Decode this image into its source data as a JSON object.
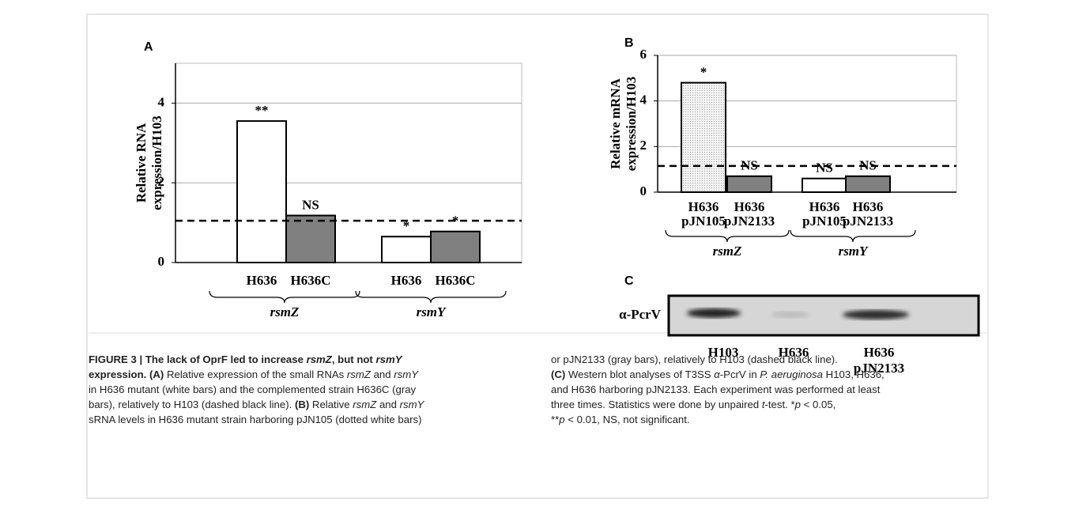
{
  "chart_data": [
    {
      "type": "bar",
      "panel": "A",
      "ylabel": [
        "Relative RNA",
        "expression/H103"
      ],
      "ylim": [
        0,
        5
      ],
      "yticks": [
        0,
        2,
        4
      ],
      "grid": true,
      "reference_line": 1.05,
      "groups": [
        {
          "name": "rsmZ",
          "categories": [
            "H636",
            "H636C"
          ],
          "values": [
            3.55,
            1.18
          ],
          "annotations": [
            "**",
            "NS"
          ],
          "colors": [
            "#ffffff",
            "#808080"
          ],
          "patterns": [
            null,
            null
          ]
        },
        {
          "name": "rsmY",
          "categories": [
            "H636",
            "H636C"
          ],
          "values": [
            0.65,
            0.78
          ],
          "annotations": [
            "*",
            "*"
          ],
          "colors": [
            "#ffffff",
            "#808080"
          ],
          "patterns": [
            null,
            null
          ]
        }
      ]
    },
    {
      "type": "bar",
      "panel": "B",
      "ylabel": [
        "Relative mRNA",
        "expression/H103"
      ],
      "ylim": [
        0,
        6
      ],
      "yticks": [
        0,
        2,
        4,
        6
      ],
      "grid": true,
      "reference_line": 1.15,
      "groups": [
        {
          "name": "rsmZ",
          "categories": [
            [
              "H636",
              "pJN105"
            ],
            [
              "H636",
              "pJN2133"
            ]
          ],
          "values": [
            4.8,
            0.7
          ],
          "annotations": [
            "*",
            "NS"
          ],
          "colors": [
            "#f2f2f2",
            "#808080"
          ],
          "patterns": [
            "dots",
            null
          ]
        },
        {
          "name": "rsmY",
          "categories": [
            [
              "H636",
              "pJN105"
            ],
            [
              "H636",
              "pJN2133"
            ]
          ],
          "values": [
            0.6,
            0.7
          ],
          "annotations": [
            "NS",
            "NS"
          ],
          "colors": [
            "#ffffff",
            "#808080"
          ],
          "patterns": [
            null,
            null
          ]
        }
      ]
    }
  ],
  "blot": {
    "panel": "C",
    "antibody": "α-PcrV",
    "lanes": [
      [
        "H103"
      ],
      [
        "H636"
      ],
      [
        "H636",
        "pJN2133"
      ]
    ]
  },
  "caption": {
    "lines": [
      [
        "FIGURE 3 | The lack of OprF led to increase ",
        "rsmZ",
        ", but not ",
        "rsmY"
      ],
      [
        "expression.",
        " (A)",
        " Relative expression of the small RNAs ",
        "rsmZ",
        " and ",
        "rsmY"
      ],
      [
        "in H636 mutant (white bars) and the complemented strain H636C (gray"
      ],
      [
        "bars), relatively to H103 (dashed black line). ",
        "(B)",
        " Relative ",
        "rsmZ",
        " and ",
        "rsmY"
      ],
      [
        "sRNA levels in H636 mutant strain harboring pJN105 (dotted white bars)"
      ],
      [
        "or pJN2133 (gray bars), relatively to H103 (dashed black line)."
      ],
      [
        "(C)",
        " Western blot analyses of T3SS ",
        "α",
        "-PcrV in ",
        "P. aeruginosa",
        " H103, H636,"
      ],
      [
        "and H636 harboring pJN2133. Each experiment was performed at least"
      ],
      [
        "three times. Statistics were done by unpaired ",
        "t",
        "-test. *",
        "p",
        " < 0.05,"
      ],
      [
        "**",
        "p",
        " < 0.01, NS, not significant."
      ]
    ]
  }
}
